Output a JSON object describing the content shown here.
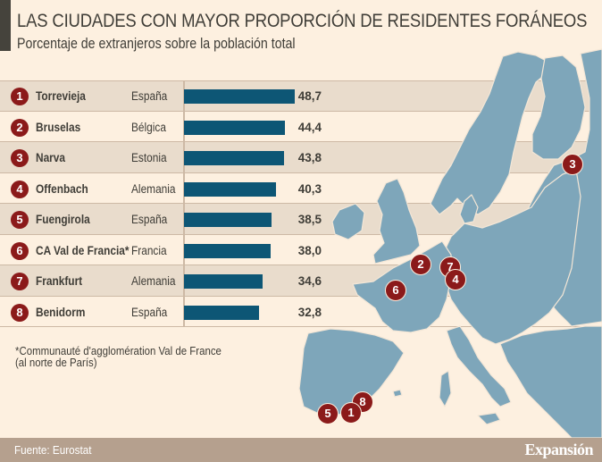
{
  "header": {
    "title": "LAS CIUDADES CON MAYOR PROPORCIÓN DE RESIDENTES FORÁNEOS",
    "subtitle": "Porcentaje de extranjeros sobre la población total"
  },
  "colors": {
    "background": "#fdf0e0",
    "row_shade": "#e9dccc",
    "bar": "#0d5675",
    "badge": "#8b1a1a",
    "map_land": "#7ea6ba",
    "footer": "#b5a08e"
  },
  "chart_data": {
    "type": "bar",
    "orientation": "horizontal",
    "title": "LAS CIUDADES CON MAYOR PROPORCIÓN DE RESIDENTES FORÁNEOS",
    "subtitle": "Porcentaje de extranjeros sobre la población total",
    "xlabel": "",
    "ylabel": "",
    "xlim": [
      0,
      48.7
    ],
    "grid": false,
    "categories": [
      "Torrevieja",
      "Bruselas",
      "Narva",
      "Offenbach",
      "Fuengirola",
      "CA Val de Francia*",
      "Frankfurt",
      "Benidorm"
    ],
    "series": [
      {
        "name": "Porcentaje de extranjeros",
        "values": [
          48.7,
          44.4,
          43.8,
          40.3,
          38.5,
          38.0,
          34.6,
          32.8
        ]
      }
    ],
    "rows": [
      {
        "rank": "1",
        "city": "Torrevieja",
        "country": "España",
        "value": 48.7,
        "label": "48,7"
      },
      {
        "rank": "2",
        "city": "Bruselas",
        "country": "Bélgica",
        "value": 44.4,
        "label": "44,4"
      },
      {
        "rank": "3",
        "city": "Narva",
        "country": "Estonia",
        "value": 43.8,
        "label": "43,8"
      },
      {
        "rank": "4",
        "city": "Offenbach",
        "country": "Alemania",
        "value": 40.3,
        "label": "40,3"
      },
      {
        "rank": "5",
        "city": "Fuengirola",
        "country": "España",
        "value": 38.5,
        "label": "38,5"
      },
      {
        "rank": "6",
        "city": "CA Val de Francia*",
        "country": "Francia",
        "value": 38.0,
        "label": "38,0"
      },
      {
        "rank": "7",
        "city": "Frankfurt",
        "country": "Alemania",
        "value": 34.6,
        "label": "34,6"
      },
      {
        "rank": "8",
        "city": "Benidorm",
        "country": "España",
        "value": 32.8,
        "label": "32,8"
      }
    ]
  },
  "map": {
    "markers": [
      "3",
      "2",
      "7",
      "4",
      "6",
      "8",
      "5",
      "1"
    ]
  },
  "note": {
    "line1": "*Communauté d'agglomération Val de France",
    "line2": "(al norte de París)"
  },
  "footer": {
    "source": "Fuente: Eurostat",
    "logo": "Expansión"
  }
}
